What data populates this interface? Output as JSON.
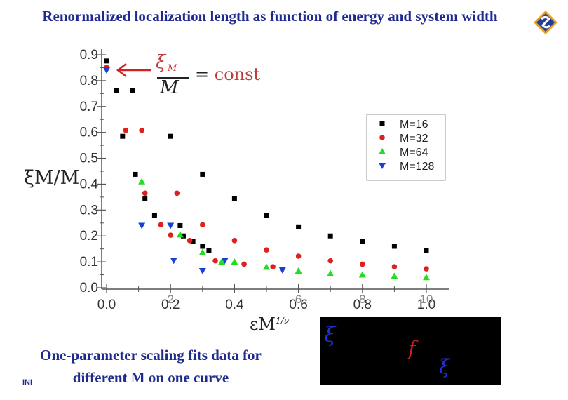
{
  "slide": {
    "title": "Renormalized localization length as function of energy and system width",
    "caption": "One-parameter scaling fits data for different M on one curve",
    "footer_mark": "INI"
  },
  "formula": {
    "lhs_symbol": "ξ",
    "lhs_subscript": "M",
    "denominator": "M",
    "equals": "=",
    "rhs": "const",
    "color": "#c23b3b"
  },
  "panel": {
    "symbols": [
      "ξ",
      "f",
      "ξ"
    ],
    "xi_color": "#2233cc",
    "f_color": "#cc1f1f"
  },
  "chart_data": {
    "type": "scatter",
    "ylabel": "ξM/M",
    "xlabel": "εM",
    "xlabel_superscript": "1/ν",
    "xlim": [
      0.0,
      1.0
    ],
    "ylim": [
      0.0,
      0.9
    ],
    "x_ticks": [
      "0.0",
      "0.2",
      "0.4",
      "0.6",
      "0.8",
      "1.0"
    ],
    "x_ticks_overlay": [
      "2",
      "6",
      "8",
      "10"
    ],
    "y_ticks": [
      "0.0",
      "0.1",
      "0.2",
      "0.3",
      "0.4",
      "0.5",
      "0.6",
      "0.7",
      "0.8",
      "0.9"
    ],
    "legend_position": "top-right",
    "grid": false,
    "series": [
      {
        "name": "M=16",
        "color": "#000000",
        "marker": "square",
        "points": [
          [
            0.0,
            0.876
          ],
          [
            0.03,
            0.762
          ],
          [
            0.05,
            0.585
          ],
          [
            0.08,
            0.762
          ],
          [
            0.09,
            0.438
          ],
          [
            0.12,
            0.344
          ],
          [
            0.15,
            0.278
          ],
          [
            0.2,
            0.585
          ],
          [
            0.23,
            0.24
          ],
          [
            0.24,
            0.2
          ],
          [
            0.27,
            0.178
          ],
          [
            0.3,
            0.16
          ],
          [
            0.32,
            0.143
          ],
          [
            0.3,
            0.438
          ],
          [
            0.4,
            0.344
          ],
          [
            0.5,
            0.278
          ],
          [
            0.6,
            0.235
          ],
          [
            0.7,
            0.2
          ],
          [
            0.8,
            0.178
          ],
          [
            0.9,
            0.16
          ],
          [
            1.0,
            0.143
          ]
        ]
      },
      {
        "name": "M=32",
        "color": "#e02020",
        "marker": "circle",
        "points": [
          [
            0.0,
            0.851
          ],
          [
            0.06,
            0.608
          ],
          [
            0.11,
            0.608
          ],
          [
            0.12,
            0.365
          ],
          [
            0.17,
            0.243
          ],
          [
            0.2,
            0.203
          ],
          [
            0.22,
            0.365
          ],
          [
            0.3,
            0.243
          ],
          [
            0.4,
            0.182
          ],
          [
            0.5,
            0.146
          ],
          [
            0.6,
            0.122
          ],
          [
            0.7,
            0.104
          ],
          [
            0.8,
            0.091
          ],
          [
            0.9,
            0.081
          ],
          [
            1.0,
            0.073
          ],
          [
            0.26,
            0.182
          ],
          [
            0.34,
            0.104
          ],
          [
            0.43,
            0.091
          ],
          [
            0.52,
            0.081
          ]
        ]
      },
      {
        "name": "M=64",
        "color": "#22dd22",
        "marker": "triangle-up",
        "points": [
          [
            0.11,
            0.41
          ],
          [
            0.23,
            0.205
          ],
          [
            0.3,
            0.137
          ],
          [
            0.36,
            0.1
          ],
          [
            0.4,
            0.1
          ],
          [
            0.5,
            0.08
          ],
          [
            0.6,
            0.065
          ],
          [
            0.7,
            0.055
          ],
          [
            0.8,
            0.05
          ],
          [
            0.9,
            0.045
          ],
          [
            1.0,
            0.04
          ]
        ]
      },
      {
        "name": "M=128",
        "color": "#1b3fd6",
        "marker": "triangle-down",
        "points": [
          [
            0.0,
            0.84
          ],
          [
            0.11,
            0.24
          ],
          [
            0.2,
            0.24
          ],
          [
            0.21,
            0.105
          ],
          [
            0.3,
            0.065
          ],
          [
            0.37,
            0.105
          ],
          [
            0.55,
            0.068
          ]
        ]
      }
    ]
  }
}
